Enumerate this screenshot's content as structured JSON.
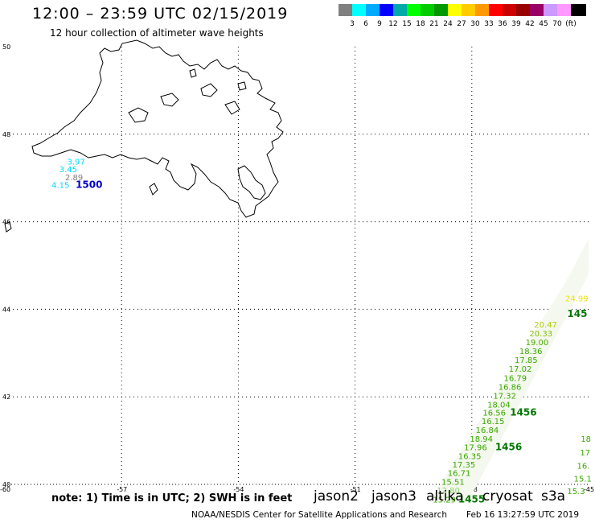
{
  "header": {
    "title": "12:00 – 23:59 UTC 02/15/2019",
    "subtitle": "12 hour collection of altimeter wave heights"
  },
  "legend": {
    "colors": [
      "#808080",
      "#00ffff",
      "#00aaff",
      "#0000ff",
      "#00aaaa",
      "#00ff00",
      "#00cc00",
      "#009900",
      "#ffff00",
      "#ffcc00",
      "#ff9900",
      "#ff0000",
      "#cc0000",
      "#990000",
      "#990066",
      "#cc99ff",
      "#ff99ff",
      "#000000"
    ],
    "labels": [
      "3",
      "6",
      "9",
      "12",
      "15",
      "18",
      "21",
      "24",
      "27",
      "30",
      "33",
      "36",
      "39",
      "42",
      "45",
      "70",
      "(ft)"
    ]
  },
  "axes": {
    "lat_labels": [
      "50",
      "48",
      "46",
      "44",
      "42",
      "40"
    ],
    "lon_labels": [
      "-60",
      "-57",
      "-54",
      "-51",
      "-48",
      "-45"
    ]
  },
  "observations": [
    {
      "v": "3.97",
      "lon": -58.4,
      "lat": 47.31,
      "c": "#00d8ff"
    },
    {
      "v": "3.45",
      "lon": -58.6,
      "lat": 47.13,
      "c": "#00d8ff"
    },
    {
      "v": "2.89",
      "lon": -58.45,
      "lat": 46.95,
      "c": "#808080"
    },
    {
      "v": "4.15",
      "lon": -58.8,
      "lat": 46.77,
      "c": "#00d8ff"
    },
    {
      "v": "1500",
      "lon": -58.18,
      "lat": 46.77,
      "c": "#0000cc",
      "bold": true
    },
    {
      "v": "24.99",
      "lon": -45.6,
      "lat": 44.18,
      "c": "#f0e000"
    },
    {
      "v": "145",
      "lon": -45.55,
      "lat": 43.82,
      "c": "#007700",
      "bold": true
    },
    {
      "v": "20.47",
      "lon": -46.4,
      "lat": 43.58,
      "c": "#b0d000"
    },
    {
      "v": "20.33",
      "lon": -46.52,
      "lat": 43.38,
      "c": "#7cc000"
    },
    {
      "v": "19.00",
      "lon": -46.62,
      "lat": 43.18,
      "c": "#4caa00"
    },
    {
      "v": "18.36",
      "lon": -46.78,
      "lat": 42.98,
      "c": "#3aa800"
    },
    {
      "v": "17.85",
      "lon": -46.9,
      "lat": 42.78,
      "c": "#3aa800"
    },
    {
      "v": "17.02",
      "lon": -47.05,
      "lat": 42.57,
      "c": "#3aa800"
    },
    {
      "v": "16.79",
      "lon": -47.18,
      "lat": 42.36,
      "c": "#3aa800"
    },
    {
      "v": "16.86",
      "lon": -47.32,
      "lat": 42.16,
      "c": "#3aa800"
    },
    {
      "v": "17.32",
      "lon": -47.45,
      "lat": 41.96,
      "c": "#3aa800"
    },
    {
      "v": "18.04",
      "lon": -47.6,
      "lat": 41.76,
      "c": "#3aa800"
    },
    {
      "v": "16.56",
      "lon": -47.72,
      "lat": 41.57,
      "c": "#3aa800"
    },
    {
      "v": "1456",
      "lon": -47.02,
      "lat": 41.57,
      "c": "#007700",
      "bold": true
    },
    {
      "v": "16.15",
      "lon": -47.75,
      "lat": 41.38,
      "c": "#3aa800"
    },
    {
      "v": "16.84",
      "lon": -47.9,
      "lat": 41.18,
      "c": "#3aa800"
    },
    {
      "v": "18.94",
      "lon": -48.05,
      "lat": 40.97,
      "c": "#3aa800"
    },
    {
      "v": "17.96",
      "lon": -48.2,
      "lat": 40.78,
      "c": "#3aa800"
    },
    {
      "v": "1456",
      "lon": -47.4,
      "lat": 40.78,
      "c": "#007700",
      "bold": true
    },
    {
      "v": "16.35",
      "lon": -48.35,
      "lat": 40.58,
      "c": "#3aa800"
    },
    {
      "v": "17.35",
      "lon": -48.5,
      "lat": 40.39,
      "c": "#3aa800"
    },
    {
      "v": "16.71",
      "lon": -48.62,
      "lat": 40.19,
      "c": "#3aa800"
    },
    {
      "v": "15.51",
      "lon": -48.78,
      "lat": 39.99,
      "c": "#3aa800"
    },
    {
      "v": "12.80",
      "lon": -48.9,
      "lat": 39.8,
      "c": "#90d870"
    },
    {
      "v": "15.29",
      "lon": -49.0,
      "lat": 39.59,
      "c": "#3aa800"
    },
    {
      "v": "1455",
      "lon": -48.35,
      "lat": 39.59,
      "c": "#007700",
      "bold": true
    },
    {
      "v": "18",
      "lon": -45.2,
      "lat": 40.97,
      "c": "#3aa800"
    },
    {
      "v": "17",
      "lon": -45.22,
      "lat": 40.66,
      "c": "#3aa800"
    },
    {
      "v": "16.",
      "lon": -45.3,
      "lat": 40.36,
      "c": "#3aa800"
    },
    {
      "v": "15.1",
      "lon": -45.38,
      "lat": 40.06,
      "c": "#3aa800"
    },
    {
      "v": "15.3",
      "lon": -45.55,
      "lat": 39.78,
      "c": "#3aa800"
    }
  ],
  "footer": {
    "note": "note: 1) Time is in UTC; 2) SWH is in feet",
    "satellites": [
      {
        "name": "jason2",
        "color": "#0000dd"
      },
      {
        "name": "jason3",
        "color": "#009900"
      },
      {
        "name": "altika",
        "color": "#ff9900"
      },
      {
        "name": "cryosat",
        "color": "#dd0000"
      },
      {
        "name": "s3a",
        "color": "#aa0000"
      }
    ],
    "credit": "NOAA/NESDIS Center for Satellite Applications and Research",
    "timestamp": "Feb 16 13:27:59 UTC 2019"
  }
}
